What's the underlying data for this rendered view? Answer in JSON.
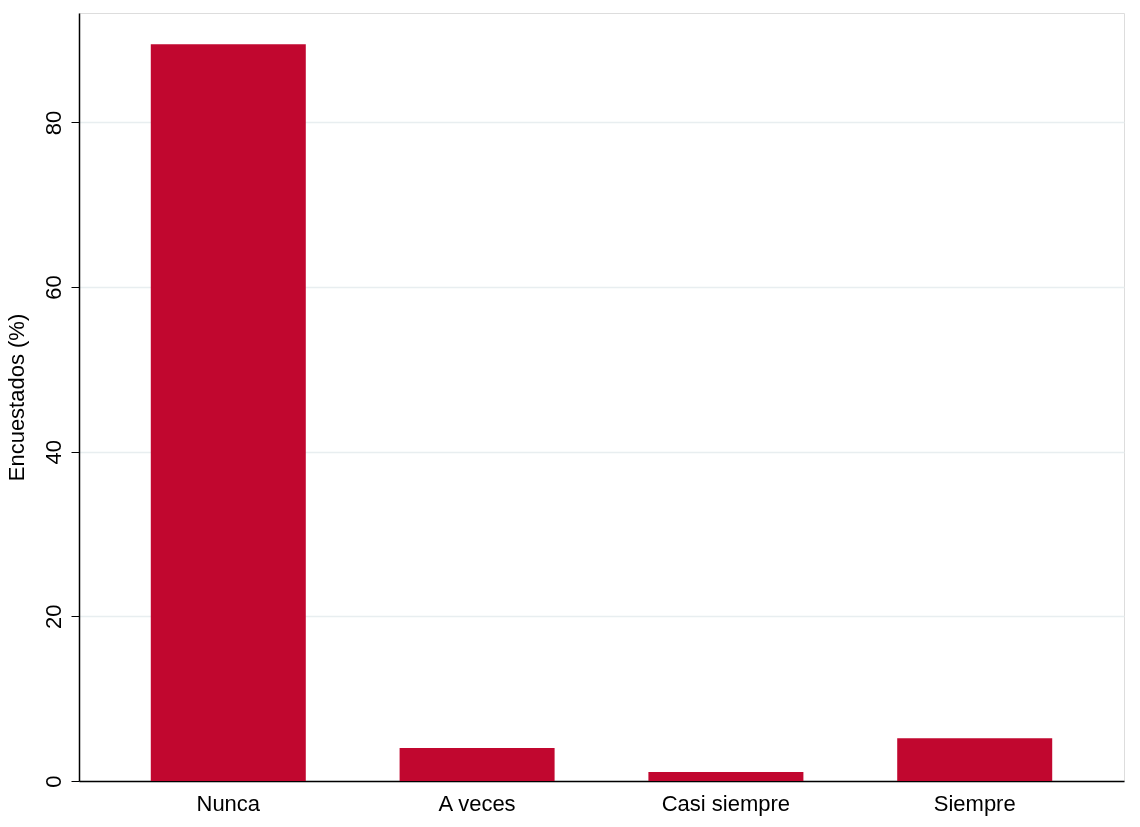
{
  "chart_data": {
    "type": "bar",
    "ylabel": "Encuestados (%)",
    "categories": [
      "Nunca",
      "A veces",
      "Casi siempre",
      "Siempre"
    ],
    "values": [
      89.5,
      4.0,
      1.1,
      5.2
    ],
    "color": "#c1072f",
    "ylim": [
      0,
      93.3
    ],
    "yticks": [
      0,
      20,
      40,
      60,
      80
    ],
    "grid": "y"
  }
}
